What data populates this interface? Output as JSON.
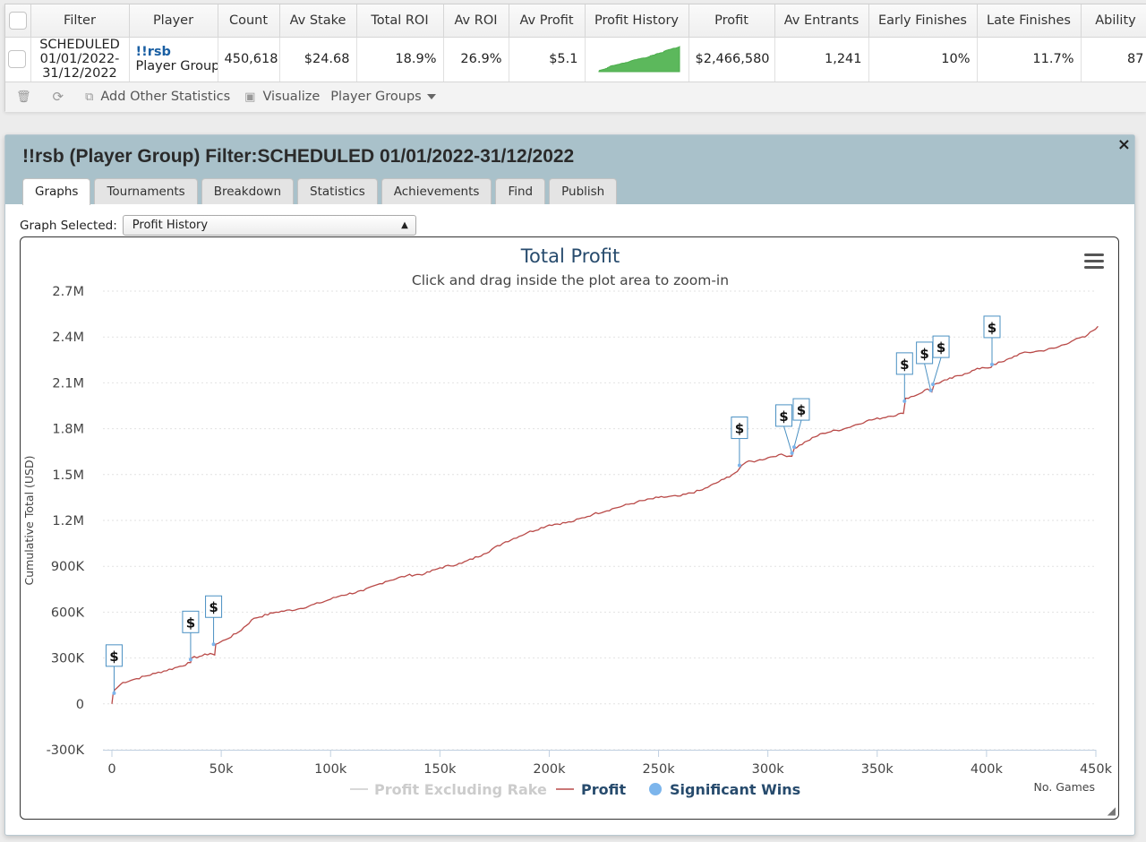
{
  "table": {
    "headers": [
      "Filter",
      "Player",
      "Count",
      "Av Stake",
      "Total ROI",
      "Av ROI",
      "Av Profit",
      "Profit History",
      "Profit",
      "Av Entrants",
      "Early Finishes",
      "Late Finishes",
      "Ability"
    ],
    "row": {
      "filter_line1": "SCHEDULED",
      "filter_line2": "01/01/2022-",
      "filter_line3": "31/12/2022",
      "player_name": "!!rsb",
      "player_type": "Player Group",
      "count": "450,618",
      "av_stake": "$24.68",
      "total_roi": "18.9%",
      "av_roi": "26.9%",
      "av_profit": "$5.1",
      "profit": "$2,466,580",
      "av_entrants": "1,241",
      "early_finishes": "10%",
      "late_finishes": "11.7%",
      "ability": "87"
    }
  },
  "toolbar": {
    "add_stats": "Add Other Statistics",
    "visualize": "Visualize",
    "player_groups": "Player Groups"
  },
  "dialog": {
    "title": "!!rsb (Player Group) Filter:SCHEDULED 01/01/2022-31/12/2022",
    "close": "×",
    "tabs": [
      "Graphs",
      "Tournaments",
      "Breakdown",
      "Statistics",
      "Achievements",
      "Find",
      "Publish"
    ],
    "graph_selected_label": "Graph Selected:",
    "graph_selected_value": "Profit History"
  },
  "colors": {
    "profit_line": "#b94a48",
    "excl_rake": "#cccccc",
    "sig_wins": "#7cb5ec",
    "flag_border": "#4a90c2",
    "title": "#274b6d",
    "spark": "#5cb85c"
  },
  "chart_data": {
    "type": "line",
    "title": "Total Profit",
    "subtitle": "Click and drag inside the plot area to zoom-in",
    "xlabel": "No. Games",
    "ylabel": "Cumulative Total (USD)",
    "xlim": [
      0,
      450000
    ],
    "ylim": [
      -300000,
      2700000
    ],
    "x_ticks": [
      0,
      50000,
      100000,
      150000,
      200000,
      250000,
      300000,
      350000,
      400000,
      450000
    ],
    "x_tick_labels": [
      "0",
      "50k",
      "100k",
      "150k",
      "200k",
      "250k",
      "300k",
      "350k",
      "400k",
      "450k"
    ],
    "y_ticks": [
      -300000,
      0,
      300000,
      600000,
      900000,
      1200000,
      1500000,
      1800000,
      2100000,
      2400000,
      2700000
    ],
    "y_tick_labels": [
      "-300K",
      "0",
      "300K",
      "600K",
      "900K",
      "1.2M",
      "1.5M",
      "1.8M",
      "2.1M",
      "2.4M",
      "2.7M"
    ],
    "legend": [
      "Profit Excluding Rake",
      "Profit",
      "Significant Wins"
    ],
    "series": [
      {
        "name": "Profit",
        "x": [
          0,
          500,
          1200,
          5000,
          10000,
          20000,
          30000,
          36000,
          36500,
          40000,
          45000,
          47000,
          47500,
          52000,
          58000,
          65000,
          75000,
          85000,
          95000,
          105000,
          115000,
          125000,
          135000,
          143000,
          150000,
          160000,
          170000,
          180000,
          190000,
          200000,
          210000,
          220000,
          230000,
          240000,
          250000,
          260000,
          270000,
          280000,
          286000,
          288000,
          290000,
          295000,
          300000,
          305000,
          311000,
          312000,
          318000,
          325000,
          335000,
          345000,
          355000,
          362000,
          363000,
          368000,
          373000,
          375000,
          376000,
          382000,
          390000,
          398000,
          402000,
          403000,
          408000,
          415000,
          425000,
          432000,
          440000,
          445000,
          451000
        ],
        "y": [
          0,
          60000,
          90000,
          140000,
          160000,
          200000,
          240000,
          270000,
          300000,
          310000,
          330000,
          320000,
          390000,
          420000,
          470000,
          560000,
          600000,
          620000,
          660000,
          710000,
          740000,
          800000,
          840000,
          850000,
          890000,
          920000,
          980000,
          1060000,
          1120000,
          1170000,
          1190000,
          1240000,
          1280000,
          1320000,
          1350000,
          1360000,
          1400000,
          1470000,
          1520000,
          1560000,
          1580000,
          1590000,
          1610000,
          1630000,
          1620000,
          1670000,
          1720000,
          1770000,
          1800000,
          1850000,
          1880000,
          1900000,
          2000000,
          2020000,
          2060000,
          2040000,
          2090000,
          2120000,
          2160000,
          2200000,
          2200000,
          2220000,
          2240000,
          2290000,
          2310000,
          2330000,
          2380000,
          2400000,
          2470000
        ]
      },
      {
        "name": "Profit Excluding Rake",
        "x": [],
        "y": []
      }
    ],
    "significant_wins": [
      {
        "x": 1000,
        "y": 70000,
        "label": "$"
      },
      {
        "x": 36000,
        "y": 290000,
        "label": "$"
      },
      {
        "x": 46500,
        "y": 390000,
        "label": "$"
      },
      {
        "x": 287000,
        "y": 1560000,
        "label": "$"
      },
      {
        "x": 311000,
        "y": 1640000,
        "label": "$"
      },
      {
        "x": 312000,
        "y": 1680000,
        "label": "$"
      },
      {
        "x": 362500,
        "y": 1980000,
        "label": "$"
      },
      {
        "x": 374500,
        "y": 2050000,
        "label": "$"
      },
      {
        "x": 375500,
        "y": 2090000,
        "label": "$"
      },
      {
        "x": 402500,
        "y": 2220000,
        "label": "$"
      }
    ]
  }
}
